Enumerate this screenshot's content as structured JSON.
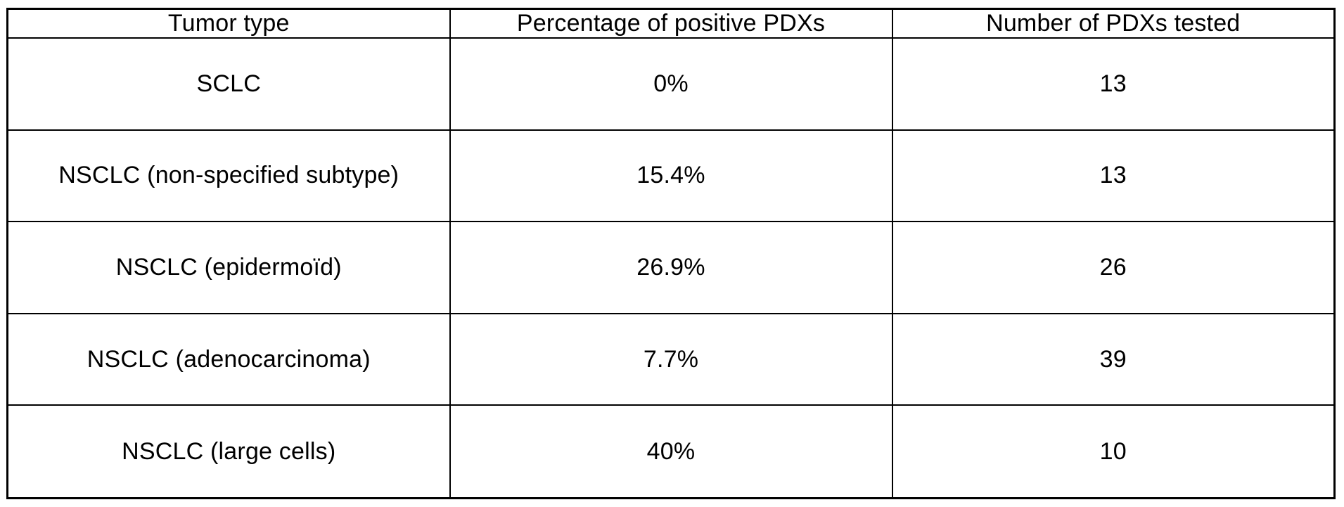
{
  "table": {
    "columns": [
      "Tumor type",
      "Percentage of positive PDXs",
      "Number of PDXs tested"
    ],
    "rows": [
      [
        "SCLC",
        "0%",
        "13"
      ],
      [
        "NSCLC (non-specified subtype)",
        "15.4%",
        "13"
      ],
      [
        "NSCLC (epidermoïd)",
        "26.9%",
        "26"
      ],
      [
        "NSCLC (adenocarcinoma)",
        "7.7%",
        "39"
      ],
      [
        "NSCLC (large cells)",
        "40%",
        "10"
      ]
    ],
    "style": {
      "border_color": "#000000",
      "background_color": "#ffffff",
      "text_color": "#000000"
    }
  },
  "chart_data": {
    "type": "table",
    "title": "",
    "columns": [
      "Tumor type",
      "Percentage of positive PDXs",
      "Number of PDXs tested"
    ],
    "categories": [
      "SCLC",
      "NSCLC (non-specified subtype)",
      "NSCLC (epidermoïd)",
      "NSCLC (adenocarcinoma)",
      "NSCLC (large cells)"
    ],
    "series": [
      {
        "name": "Percentage of positive PDXs",
        "values": [
          0,
          15.4,
          26.9,
          7.7,
          40
        ]
      },
      {
        "name": "Number of PDXs tested",
        "values": [
          13,
          13,
          26,
          39,
          10
        ]
      }
    ]
  }
}
